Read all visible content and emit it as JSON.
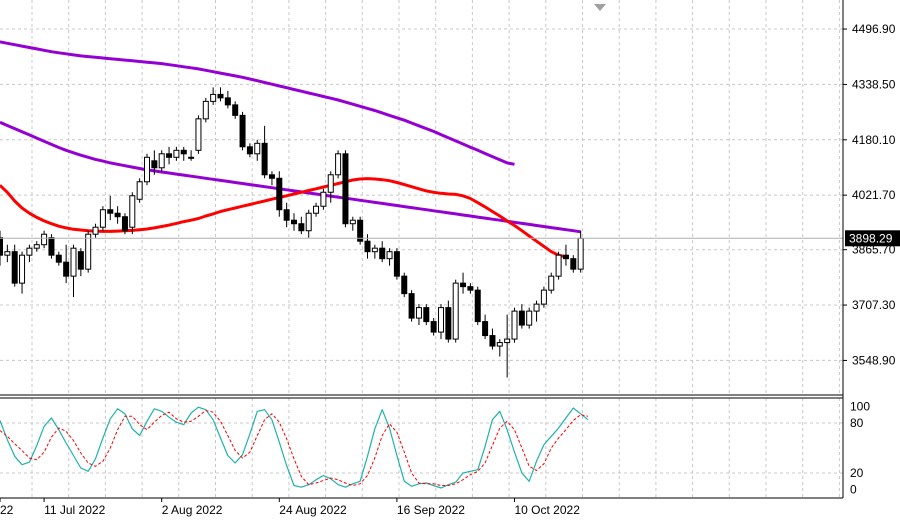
{
  "chart_data": [
    {
      "type": "candlestick",
      "title": "",
      "grid": true,
      "ylim": [
        3450,
        4580
      ],
      "yticks": [
        "4496.90",
        "4338.50",
        "4180.10",
        "4021.70",
        "3865.70",
        "3707.30",
        "3548.90"
      ],
      "price_label": "3898.29",
      "price_value": 3898.29,
      "xticks": [
        {
          "label": "22",
          "index": 0
        },
        {
          "label": "11 Jul 2022",
          "index": 6
        },
        {
          "label": "2 Aug 2022",
          "index": 22
        },
        {
          "label": "24 Aug 2022",
          "index": 38
        },
        {
          "label": "16 Sep 2022",
          "index": 54
        },
        {
          "label": "10 Oct 2022",
          "index": 70
        }
      ],
      "candles": [
        [
          3900,
          3920,
          3820,
          3850
        ],
        [
          3850,
          3880,
          3830,
          3860
        ],
        [
          3860,
          3880,
          3760,
          3770
        ],
        [
          3770,
          3860,
          3740,
          3850
        ],
        [
          3850,
          3880,
          3830,
          3870
        ],
        [
          3870,
          3890,
          3860,
          3880
        ],
        [
          3880,
          3920,
          3870,
          3910
        ],
        [
          3900,
          3910,
          3840,
          3850
        ],
        [
          3850,
          3860,
          3820,
          3830
        ],
        [
          3830,
          3880,
          3770,
          3790
        ],
        [
          3790,
          3880,
          3730,
          3870
        ],
        [
          3860,
          3870,
          3790,
          3810
        ],
        [
          3810,
          3920,
          3800,
          3910
        ],
        [
          3910,
          3940,
          3900,
          3930
        ],
        [
          3930,
          3990,
          3920,
          3980
        ],
        [
          3980,
          4020,
          3950,
          3970
        ],
        [
          3970,
          3990,
          3940,
          3960
        ],
        [
          3960,
          3970,
          3910,
          3920
        ],
        [
          3930,
          4030,
          3910,
          4020
        ],
        [
          4010,
          4070,
          4000,
          4060
        ],
        [
          4060,
          4140,
          4050,
          4130
        ],
        [
          4120,
          4150,
          4080,
          4100
        ],
        [
          4100,
          4150,
          4090,
          4140
        ],
        [
          4140,
          4160,
          4110,
          4130
        ],
        [
          4130,
          4160,
          4120,
          4150
        ],
        [
          4150,
          4160,
          4120,
          4140
        ],
        [
          4130,
          4150,
          4120,
          4130
        ],
        [
          4150,
          4250,
          4140,
          4240
        ],
        [
          4240,
          4300,
          4230,
          4290
        ],
        [
          4290,
          4330,
          4280,
          4310
        ],
        [
          4310,
          4330,
          4290,
          4300
        ],
        [
          4300,
          4320,
          4270,
          4280
        ],
        [
          4280,
          4290,
          4240,
          4250
        ],
        [
          4250,
          4260,
          4150,
          4160
        ],
        [
          4160,
          4170,
          4130,
          4140
        ],
        [
          4140,
          4180,
          4120,
          4170
        ],
        [
          4170,
          4220,
          4070,
          4080
        ],
        [
          4080,
          4090,
          4050,
          4070
        ],
        [
          4070,
          4090,
          3960,
          3980
        ],
        [
          3980,
          4000,
          3930,
          3950
        ],
        [
          3950,
          3970,
          3920,
          3940
        ],
        [
          3940,
          3960,
          3910,
          3920
        ],
        [
          3920,
          3980,
          3900,
          3970
        ],
        [
          3970,
          4000,
          3960,
          3990
        ],
        [
          3990,
          4040,
          3980,
          4030
        ],
        [
          4030,
          4090,
          4000,
          4080
        ],
        [
          4080,
          4150,
          4070,
          4140
        ],
        [
          4140,
          4150,
          3930,
          3940
        ],
        [
          3940,
          3960,
          3920,
          3950
        ],
        [
          3950,
          3960,
          3880,
          3890
        ],
        [
          3890,
          3910,
          3840,
          3860
        ],
        [
          3860,
          3880,
          3840,
          3870
        ],
        [
          3870,
          3890,
          3830,
          3840
        ],
        [
          3840,
          3870,
          3820,
          3860
        ],
        [
          3860,
          3870,
          3780,
          3790
        ],
        [
          3790,
          3800,
          3730,
          3740
        ],
        [
          3740,
          3750,
          3660,
          3670
        ],
        [
          3670,
          3710,
          3650,
          3700
        ],
        [
          3700,
          3710,
          3650,
          3660
        ],
        [
          3660,
          3670,
          3620,
          3630
        ],
        [
          3630,
          3710,
          3610,
          3700
        ],
        [
          3700,
          3720,
          3600,
          3610
        ],
        [
          3610,
          3780,
          3600,
          3770
        ],
        [
          3770,
          3800,
          3740,
          3760
        ],
        [
          3760,
          3770,
          3740,
          3750
        ],
        [
          3750,
          3760,
          3650,
          3660
        ],
        [
          3660,
          3680,
          3610,
          3620
        ],
        [
          3620,
          3640,
          3580,
          3590
        ],
        [
          3590,
          3610,
          3560,
          3600
        ],
        [
          3600,
          3680,
          3500,
          3610
        ],
        [
          3610,
          3700,
          3600,
          3690
        ],
        [
          3690,
          3710,
          3640,
          3650
        ],
        [
          3650,
          3700,
          3640,
          3690
        ],
        [
          3690,
          3720,
          3660,
          3710
        ],
        [
          3710,
          3760,
          3700,
          3750
        ],
        [
          3750,
          3800,
          3740,
          3790
        ],
        [
          3790,
          3860,
          3780,
          3850
        ],
        [
          3850,
          3880,
          3820,
          3840
        ],
        [
          3840,
          3850,
          3800,
          3810
        ],
        [
          3810,
          3920,
          3800,
          3898
        ]
      ],
      "ma_slow": [
        4460,
        4456,
        4452,
        4448,
        4444,
        4440,
        4436,
        4432,
        4429,
        4426,
        4423,
        4420,
        4418,
        4416,
        4414,
        4412,
        4410,
        4408,
        4406,
        4404,
        4402,
        4400,
        4398,
        4395,
        4392,
        4389,
        4386,
        4383,
        4379,
        4375,
        4371,
        4367,
        4363,
        4359,
        4354,
        4349,
        4344,
        4339,
        4334,
        4329,
        4324,
        4319,
        4314,
        4309,
        4304,
        4299,
        4294,
        4288,
        4282,
        4276,
        4270,
        4264,
        4257,
        4250,
        4243,
        4236,
        4228,
        4220,
        4212,
        4204,
        4195,
        4186,
        4177,
        4168,
        4159,
        4150,
        4141,
        4132,
        4123,
        4114,
        4110
      ],
      "ma_mid": [
        4230,
        4221,
        4212,
        4203,
        4194,
        4185,
        4176,
        4167,
        4158,
        4150,
        4143,
        4136,
        4130,
        4124,
        4119,
        4114,
        4110,
        4106,
        4102,
        4098,
        4094,
        4091,
        4088,
        4085,
        4082,
        4079,
        4076,
        4073,
        4070,
        4067,
        4064,
        4061,
        4058,
        4055,
        4052,
        4049,
        4046,
        4043,
        4040,
        4037,
        4034,
        4031,
        4028,
        4025,
        4022,
        4019,
        4016,
        4013,
        4010,
        4007,
        4004,
        4001,
        3998,
        3995,
        3992,
        3989,
        3986,
        3983,
        3980,
        3977,
        3974,
        3971,
        3968,
        3965,
        3962,
        3959,
        3956,
        3953,
        3950,
        3947,
        3944,
        3941,
        3938,
        3935,
        3932,
        3929,
        3926,
        3923,
        3920,
        3917
      ],
      "ma_fast": [
        4050,
        4030,
        4005,
        3985,
        3970,
        3958,
        3948,
        3940,
        3933,
        3928,
        3924,
        3922,
        3920,
        3919,
        3918,
        3918,
        3919,
        3920,
        3921,
        3923,
        3925,
        3928,
        3932,
        3936,
        3941,
        3946,
        3950,
        3955,
        3962,
        3968,
        3975,
        3980,
        3985,
        3990,
        3995,
        4000,
        4005,
        4010,
        4015,
        4020,
        4025,
        4030,
        4035,
        4040,
        4045,
        4050,
        4055,
        4060,
        4065,
        4068,
        4069,
        4068,
        4066,
        4063,
        4058,
        4052,
        4046,
        4040,
        4034,
        4030,
        4027,
        4025,
        4024,
        4020,
        4012,
        4000,
        3988,
        3975,
        3962,
        3948,
        3935,
        3920,
        3905,
        3890,
        3875,
        3860,
        3850,
        3845
      ],
      "stoch_ylim": [
        -10,
        110
      ],
      "stoch_levels": [
        "100",
        "80",
        "20",
        "0"
      ],
      "stoch_k": [
        83,
        60,
        40,
        30,
        33,
        53,
        76,
        86,
        72,
        56,
        41,
        26,
        22,
        37,
        62,
        85,
        97,
        91,
        73,
        65,
        82,
        97,
        94,
        87,
        81,
        78,
        92,
        99,
        96,
        84,
        62,
        41,
        32,
        42,
        67,
        94,
        96,
        84,
        57,
        29,
        5,
        3,
        6,
        12,
        17,
        13,
        6,
        3,
        7,
        10,
        40,
        73,
        96,
        74,
        41,
        10,
        4,
        7,
        8,
        5,
        2,
        6,
        9,
        20,
        22,
        24,
        52,
        84,
        94,
        72,
        45,
        20,
        10,
        34,
        54,
        64,
        74,
        86,
        98,
        91,
        84
      ],
      "stoch_d": [
        71,
        64,
        55,
        47,
        38,
        36,
        45,
        63,
        74,
        70,
        59,
        44,
        32,
        28,
        34,
        50,
        72,
        88,
        88,
        78,
        72,
        81,
        89,
        93,
        85,
        81,
        82,
        88,
        95,
        93,
        82,
        65,
        47,
        38,
        45,
        65,
        84,
        91,
        81,
        61,
        37,
        16,
        6,
        8,
        11,
        14,
        12,
        8,
        5,
        7,
        17,
        38,
        65,
        79,
        69,
        45,
        20,
        8,
        7,
        7,
        5,
        5,
        7,
        12,
        18,
        22,
        32,
        53,
        74,
        82,
        72,
        50,
        28,
        23,
        31,
        50,
        62,
        72,
        83,
        90,
        88
      ]
    }
  ]
}
